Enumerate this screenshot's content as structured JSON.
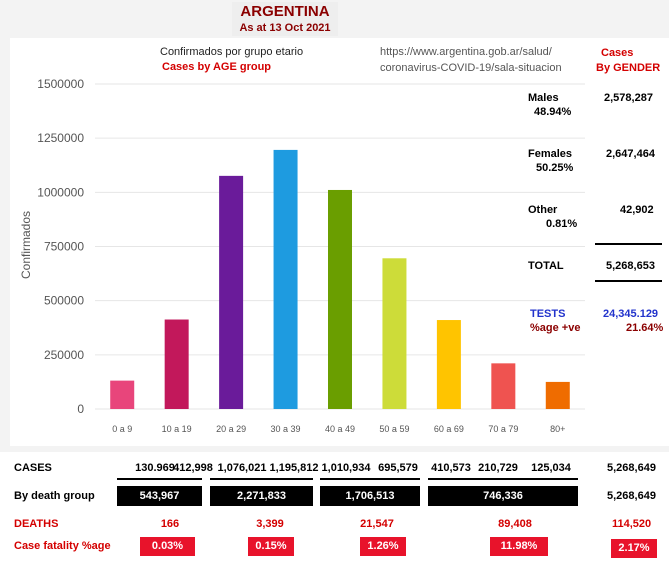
{
  "header": {
    "title": "ARGENTINA",
    "as_at": "As at 13 Oct 2021"
  },
  "chart_header": {
    "title_es": "Confirmados por grupo etario",
    "title_en": "Cases by AGE group",
    "source_line1": "https://www.argentina.gob.ar/salud/",
    "source_line2": "coronavirus-COVID-19/sala-situacion"
  },
  "chart_data": {
    "type": "bar",
    "ylabel": "Confirmados",
    "ylim": [
      0,
      1500000
    ],
    "yticks": [
      "0",
      "250000",
      "500000",
      "750000",
      "1000000",
      "1250000",
      "1500000"
    ],
    "categories": [
      "0 a 9",
      "10 a 19",
      "20 a 29",
      "30 a 39",
      "40 a 49",
      "50 a 59",
      "60 a 69",
      "70 a 79",
      "80+"
    ],
    "values": [
      130969,
      412998,
      1076021,
      1195812,
      1010934,
      695579,
      410573,
      210729,
      125034
    ],
    "colors": [
      "#e8457b",
      "#c2185b",
      "#6a1b9a",
      "#1e9be0",
      "#6a9e00",
      "#cddc39",
      "#ffc400",
      "#ef5350",
      "#ef6c00"
    ]
  },
  "gender": {
    "heading1": "Cases",
    "heading2": "By GENDER",
    "rows": [
      {
        "label": "Males",
        "pct": "48.94%",
        "value": "2,578,287"
      },
      {
        "label": "Females",
        "pct": "50.25%",
        "value": "2,647,464"
      },
      {
        "label": "Other",
        "pct": "0.81%",
        "value": "42,902"
      }
    ],
    "total_label": "TOTAL",
    "total_value": "5,268,653",
    "tests_label": "TESTS",
    "tests_value": "24,345.129",
    "pos_label": "%age +ve",
    "pos_value": "21.64%"
  },
  "table": {
    "cases_label": "CASES",
    "cases": [
      "130.969",
      "412,998",
      "1,076,021",
      "1,195,812",
      "1,010,934",
      "695,579",
      "410,573",
      "210,729",
      "125,034"
    ],
    "cases_total": "5,268,649",
    "death_group_label": "By death group",
    "death_groups": [
      "543,967",
      "2,271,833",
      "1,706,513",
      "746,336"
    ],
    "death_group_total": "5,268,649",
    "deaths_label": "DEATHS",
    "deaths": [
      "166",
      "3,399",
      "21,547",
      "89,408"
    ],
    "deaths_total": "114,520",
    "cfr_label": "Case fatality %age",
    "cfr": [
      "0.03%",
      "0.15%",
      "1.26%",
      "11.98%"
    ],
    "cfr_total": "2.17%"
  }
}
